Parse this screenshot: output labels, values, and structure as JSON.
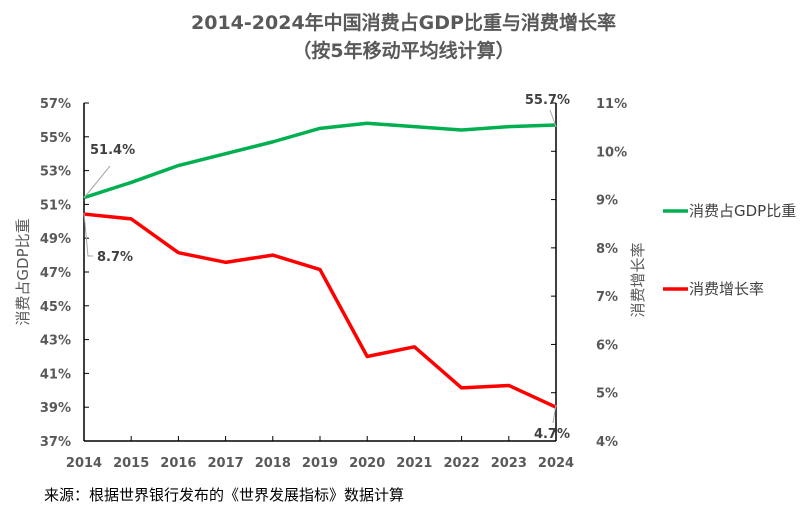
{
  "chart_data": {
    "type": "line",
    "title": "2014-2024年中国消费占GDP比重与消费增长率",
    "subtitle": "（按5年移动平均线计算）",
    "x": [
      2014,
      2015,
      2016,
      2017,
      2018,
      2019,
      2020,
      2021,
      2022,
      2023,
      2024
    ],
    "x_tick_labels": [
      "2014",
      "2015",
      "2016",
      "2017",
      "2018",
      "2019",
      "2020",
      "2021",
      "2022",
      "2023",
      "2024"
    ],
    "y_left": {
      "label": "消费占GDP比重",
      "range": [
        37,
        57
      ],
      "ticks": [
        37,
        39,
        41,
        43,
        45,
        47,
        49,
        51,
        53,
        55,
        57
      ],
      "tick_labels": [
        "37%",
        "39%",
        "41%",
        "43%",
        "45%",
        "47%",
        "49%",
        "51%",
        "53%",
        "55%",
        "57%"
      ]
    },
    "y_right": {
      "label": "消费增长率",
      "range": [
        4,
        11
      ],
      "ticks": [
        4,
        5,
        6,
        7,
        8,
        9,
        10,
        11
      ],
      "tick_labels": [
        "4%",
        "5%",
        "6%",
        "7%",
        "8%",
        "9%",
        "10%",
        "11%"
      ]
    },
    "series": [
      {
        "name": "消费占GDP比重",
        "axis": "left",
        "color": "#00B050",
        "values": [
          51.4,
          52.3,
          53.3,
          54.0,
          54.7,
          55.5,
          55.8,
          55.6,
          55.4,
          55.6,
          55.7
        ],
        "annotations": [
          {
            "index": 0,
            "text": "51.4%"
          },
          {
            "index": 10,
            "text": "55.7%"
          }
        ]
      },
      {
        "name": "消费增长率",
        "axis": "right",
        "color": "#FF0000",
        "values": [
          8.7,
          8.6,
          7.9,
          7.7,
          7.85,
          7.55,
          5.75,
          5.95,
          5.1,
          5.15,
          4.7
        ],
        "annotations": [
          {
            "index": 0,
            "text": "8.7%"
          },
          {
            "index": 10,
            "text": "4.7%"
          }
        ]
      }
    ],
    "legend": {
      "position": "right",
      "entries": [
        "消费占GDP比重",
        "消费增长率"
      ]
    },
    "grid": false
  },
  "footer": {
    "source": "来源：根据世界银行发布的《世界发展指标》数据计算"
  }
}
